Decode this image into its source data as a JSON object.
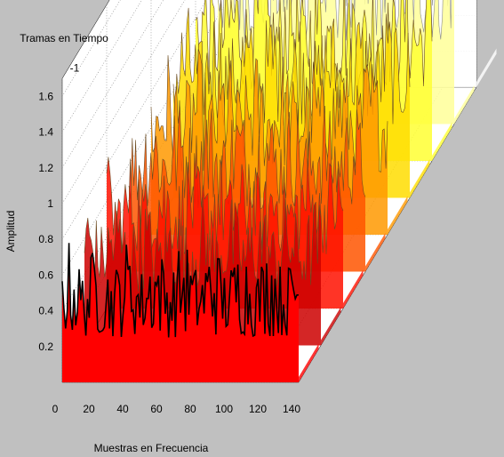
{
  "figure": {
    "background": "#c0c0c0"
  },
  "chart_data": {
    "type": "area",
    "subtype": "waterfall-3d",
    "xlabel": "Muestras en Frecuencia",
    "ylabel": "Amplitud",
    "zlabel": "Tramas en Tiempo",
    "xlim": [
      0,
      140
    ],
    "xticks": [
      0,
      20,
      40,
      60,
      80,
      100,
      120,
      140
    ],
    "ylim": [
      0,
      1.7
    ],
    "yticks": [
      0.2,
      0.4,
      0.6,
      0.8,
      1,
      1.2,
      1.4,
      1.6
    ],
    "zlim": [
      -1,
      -9
    ],
    "zticks": [
      -1,
      -3,
      -5,
      -7,
      -9
    ],
    "grid": true,
    "colormap": "hot",
    "series_count": 9,
    "samples_per_frame": 140,
    "front_series_outline_color": "#000000",
    "front_fill_color": "#ff0000",
    "back_series_line_color": "#8c8c8c",
    "frame_amplitude_ranges": [
      [
        0.25,
        0.8
      ],
      [
        0.3,
        0.85
      ],
      [
        0.3,
        0.9
      ],
      [
        0.35,
        1.0
      ],
      [
        0.35,
        1.05
      ],
      [
        0.4,
        1.1
      ],
      [
        0.4,
        1.15
      ],
      [
        0.45,
        1.2
      ],
      [
        0.45,
        1.3
      ]
    ]
  }
}
